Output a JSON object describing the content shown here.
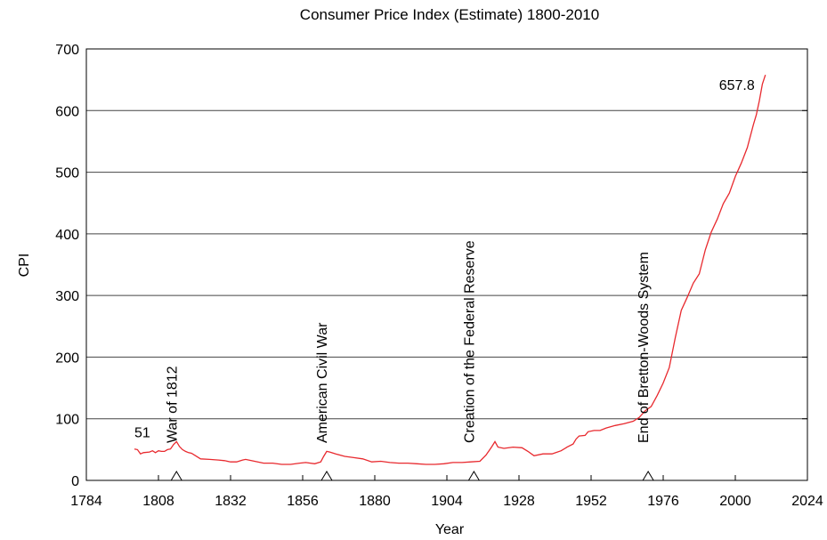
{
  "chart_data": {
    "type": "line",
    "title": "Consumer Price Index (Estimate) 1800-2010",
    "x_label": "Year",
    "y_label": "CPI",
    "x": [
      1800,
      1801,
      1802,
      1803,
      1805,
      1806,
      1807,
      1808,
      1809,
      1810,
      1811,
      1812,
      1813,
      1814,
      1815,
      1816,
      1817,
      1818,
      1819,
      1820,
      1822,
      1825,
      1828,
      1830,
      1832,
      1834,
      1836,
      1837,
      1840,
      1843,
      1846,
      1849,
      1852,
      1855,
      1857,
      1860,
      1862,
      1863,
      1864,
      1865,
      1867,
      1870,
      1873,
      1876,
      1879,
      1882,
      1885,
      1888,
      1891,
      1894,
      1897,
      1900,
      1903,
      1906,
      1909,
      1912,
      1915,
      1917,
      1918,
      1919,
      1920,
      1921,
      1923,
      1926,
      1929,
      1931,
      1933,
      1936,
      1939,
      1942,
      1944,
      1946,
      1947,
      1948,
      1950,
      1951,
      1953,
      1955,
      1957,
      1960,
      1963,
      1966,
      1968,
      1970,
      1972,
      1974,
      1976,
      1978,
      1980,
      1982,
      1984,
      1986,
      1988,
      1990,
      1992,
      1994,
      1996,
      1998,
      2000,
      2002,
      2004,
      2006,
      2007,
      2008,
      2009,
      2010
    ],
    "series": [
      {
        "name": "CPI",
        "color": "#e8292e",
        "values": [
          51,
          50,
          43,
          45,
          46,
          48,
          45,
          48,
          47,
          47,
          50,
          51,
          58,
          63,
          55,
          50,
          47,
          45,
          44,
          41,
          35,
          34,
          33,
          32,
          30,
          30,
          33,
          34,
          31,
          28,
          28,
          26,
          26,
          28,
          29,
          27,
          30,
          39,
          47,
          46,
          43,
          39,
          37,
          35,
          30,
          31,
          29,
          28,
          28,
          27,
          26,
          26,
          27,
          29,
          29,
          30,
          31,
          41,
          48,
          55,
          63,
          54,
          52,
          54,
          53,
          47,
          40,
          43,
          43,
          48,
          54,
          59,
          67,
          72,
          73,
          79,
          81,
          81,
          85,
          89,
          92,
          96,
          102,
          113,
          120,
          138,
          158,
          183,
          231,
          276,
          297,
          320,
          335,
          374,
          403,
          424,
          449,
          466,
          493,
          515,
          540,
          577,
          593,
          616,
          643,
          657.8
        ]
      }
    ],
    "point_labels": [
      {
        "x": 1800,
        "value": 51
      },
      {
        "x": 2010,
        "value": 657.8
      }
    ],
    "annotations": [
      {
        "text": "War of 1812",
        "x": 1814
      },
      {
        "text": "American Civil War",
        "x": 1864
      },
      {
        "text": "Creation of the Federal Reserve",
        "x": 1913
      },
      {
        "text": "End of Bretton-Woods System",
        "x": 1971
      }
    ],
    "xlim": [
      1784,
      2024
    ],
    "xticks": [
      1784,
      1808,
      1832,
      1856,
      1880,
      1904,
      1928,
      1952,
      1976,
      2000,
      2024
    ],
    "ylim": [
      0,
      700
    ],
    "yticks": [
      0,
      100,
      200,
      300,
      400,
      500,
      600,
      700
    ],
    "grid": true
  }
}
